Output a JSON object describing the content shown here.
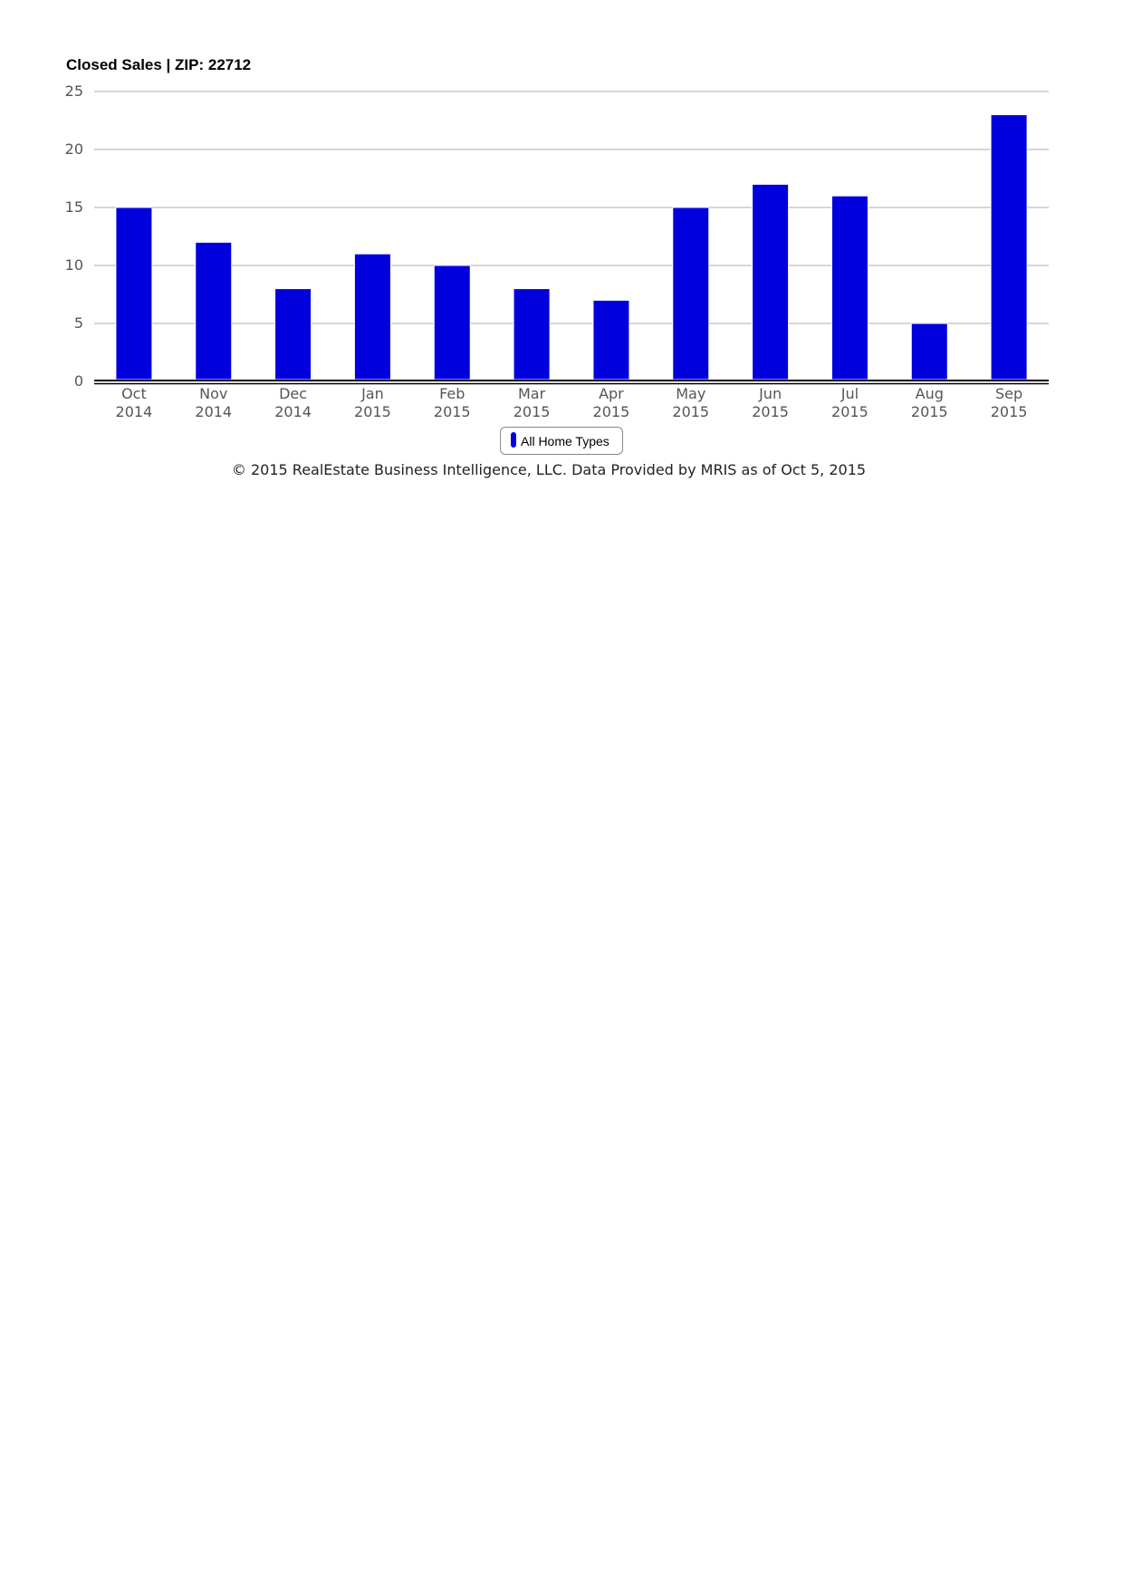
{
  "colors": {
    "bar": "#0000dd",
    "grid": "#c8c8c8",
    "axis": "#000000",
    "tick_text": "#555555"
  },
  "chart_data": {
    "type": "bar",
    "title": "Closed Sales | ZIP: 22712",
    "xlabel": "",
    "ylabel": "",
    "categories": [
      [
        "Oct",
        "2014"
      ],
      [
        "Nov",
        "2014"
      ],
      [
        "Dec",
        "2014"
      ],
      [
        "Jan",
        "2015"
      ],
      [
        "Feb",
        "2015"
      ],
      [
        "Mar",
        "2015"
      ],
      [
        "Apr",
        "2015"
      ],
      [
        "May",
        "2015"
      ],
      [
        "Jun",
        "2015"
      ],
      [
        "Jul",
        "2015"
      ],
      [
        "Aug",
        "2015"
      ],
      [
        "Sep",
        "2015"
      ]
    ],
    "series": [
      {
        "name": "All Home Types",
        "values": [
          15,
          12,
          8,
          11,
          10,
          8,
          7,
          15,
          17,
          16,
          5,
          23
        ]
      }
    ],
    "ylim": [
      0,
      25
    ],
    "yticks": [
      0,
      5,
      10,
      15,
      20,
      25
    ],
    "grid": true,
    "legend_position": "bottom-center"
  },
  "legend": {
    "label": "All Home Types"
  },
  "footer": "© 2015 RealEstate Business Intelligence, LLC. Data Provided by MRIS as of Oct 5, 2015"
}
